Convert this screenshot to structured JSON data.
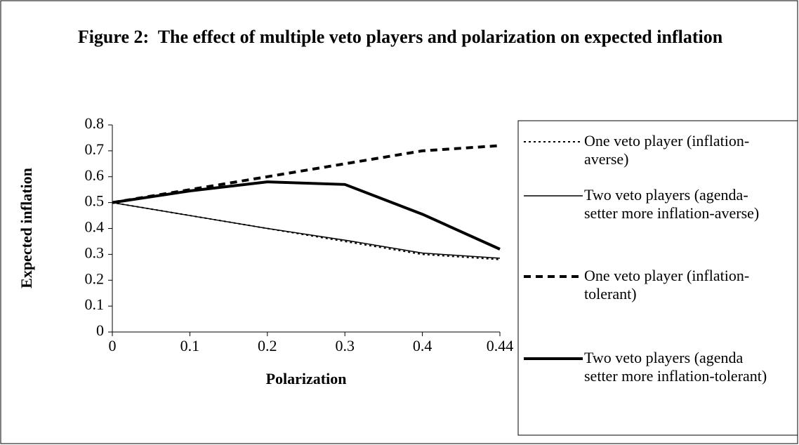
{
  "chart_data": {
    "type": "line",
    "title": "Figure 2:  The effect of multiple veto players and polarization on expected inflation",
    "x_label": "Polarization",
    "y_label": "Expected inflation",
    "categories": [
      "0",
      "0.1",
      "0.2",
      "0.3",
      "0.4",
      "0.44"
    ],
    "series": [
      {
        "name": "One veto player (inflation-averse)",
        "color": "#000000",
        "dash": "dotted",
        "width": 2,
        "values": [
          0.5,
          0.45,
          0.4,
          0.35,
          0.3,
          0.28
        ]
      },
      {
        "name": "Two veto players (agenda-setter more inflation-averse)",
        "color": "#000000",
        "dash": "solid",
        "width": 1.5,
        "values": [
          0.5,
          0.45,
          0.4,
          0.355,
          0.305,
          0.285
        ]
      },
      {
        "name": "One veto player (inflation-tolerant)",
        "color": "#000000",
        "dash": "dashed",
        "width": 4,
        "values": [
          0.5,
          0.55,
          0.6,
          0.65,
          0.7,
          0.72
        ]
      },
      {
        "name": "Two veto players (agenda setter more inflation-tolerant)",
        "color": "#000000",
        "dash": "solid",
        "width": 4,
        "values": [
          0.5,
          0.545,
          0.58,
          0.57,
          0.455,
          0.32
        ]
      }
    ],
    "ylim": [
      0,
      0.8
    ],
    "yticks": [
      0,
      0.1,
      0.2,
      0.3,
      0.4,
      0.5,
      0.6,
      0.7,
      0.8
    ],
    "grid": false,
    "legend": "right"
  }
}
